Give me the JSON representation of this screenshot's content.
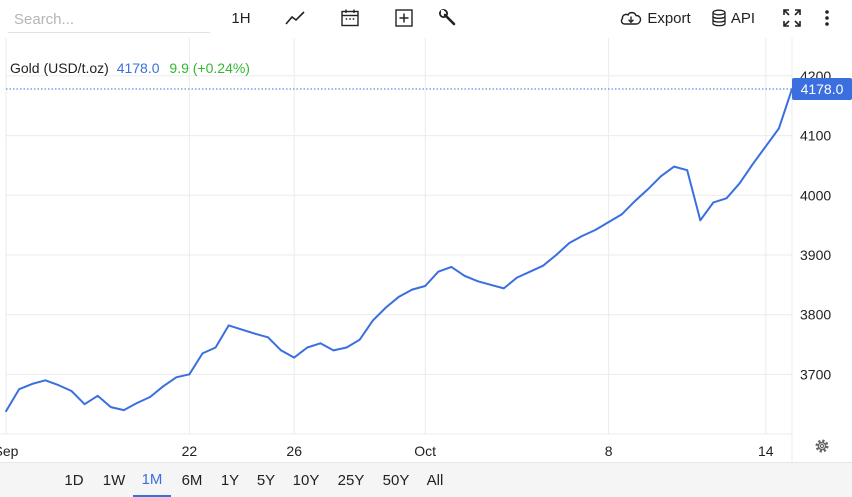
{
  "toolbar": {
    "search_placeholder": "Search...",
    "interval_label": "1H",
    "export_label": "Export",
    "api_label": "API",
    "icons": [
      "line-chart-icon",
      "calendar-icon",
      "plus-box-icon",
      "wrench-icon",
      "cloud-download-icon",
      "database-icon",
      "fullscreen-icon",
      "more-vertical-icon"
    ]
  },
  "legend": {
    "name": "Gold (USD/t.oz)",
    "price": "4178.0",
    "change": "9.9 (+0.24%)"
  },
  "last_price_label": "4178.0",
  "ranges": [
    "1D",
    "1W",
    "1M",
    "6M",
    "1Y",
    "5Y",
    "10Y",
    "25Y",
    "50Y",
    "All"
  ],
  "active_range": "1M",
  "colors": {
    "line": "#3b6fe0",
    "positive": "#33b833",
    "grid": "#ebebeb"
  },
  "chart_data": {
    "type": "line",
    "x_tick_labels": [
      "Sep",
      "22",
      "26",
      "Oct",
      "8",
      "14"
    ],
    "x_ticks": [
      "2025-09-15",
      "2025-09-22",
      "2025-09-26",
      "2025-10-01",
      "2025-10-08",
      "2025-10-14"
    ],
    "xlim": [
      "2025-09-15",
      "2025-10-15"
    ],
    "y_ticks": [
      3700,
      3800,
      3900,
      4000,
      4100,
      4200
    ],
    "ylim": [
      3600,
      4230
    ],
    "grid": true,
    "last_value": 4178.0,
    "series": [
      {
        "x": [
          "2025-09-15T00:00",
          "2025-09-15T12:00",
          "2025-09-16T00:00",
          "2025-09-16T12:00",
          "2025-09-17T00:00",
          "2025-09-17T12:00",
          "2025-09-18T00:00",
          "2025-09-18T12:00",
          "2025-09-19T00:00",
          "2025-09-19T12:00",
          "2025-09-20T00:00",
          "2025-09-20T12:00",
          "2025-09-21T00:00",
          "2025-09-21T12:00",
          "2025-09-22T00:00",
          "2025-09-22T12:00",
          "2025-09-23T00:00",
          "2025-09-23T12:00",
          "2025-09-24T00:00",
          "2025-09-24T12:00",
          "2025-09-25T00:00",
          "2025-09-25T12:00",
          "2025-09-26T00:00",
          "2025-09-26T12:00",
          "2025-09-27T00:00",
          "2025-09-27T12:00",
          "2025-09-28T00:00",
          "2025-09-28T12:00",
          "2025-09-29T00:00",
          "2025-09-29T12:00",
          "2025-09-30T00:00",
          "2025-09-30T12:00",
          "2025-10-01T00:00",
          "2025-10-01T12:00",
          "2025-10-02T00:00",
          "2025-10-02T12:00",
          "2025-10-03T00:00",
          "2025-10-03T12:00",
          "2025-10-04T00:00",
          "2025-10-04T12:00",
          "2025-10-05T00:00",
          "2025-10-05T12:00",
          "2025-10-06T00:00",
          "2025-10-06T12:00",
          "2025-10-07T00:00",
          "2025-10-07T12:00",
          "2025-10-08T00:00",
          "2025-10-08T12:00",
          "2025-10-09T00:00",
          "2025-10-09T12:00",
          "2025-10-10T00:00",
          "2025-10-10T12:00",
          "2025-10-11T00:00",
          "2025-10-11T12:00",
          "2025-10-12T00:00",
          "2025-10-12T12:00",
          "2025-10-13T00:00",
          "2025-10-13T12:00",
          "2025-10-14T00:00",
          "2025-10-14T12:00",
          "2025-10-15T00:00"
        ],
        "values": [
          3638,
          3675,
          3684,
          3690,
          3682,
          3672,
          3650,
          3664,
          3645,
          3640,
          3652,
          3662,
          3680,
          3695,
          3700,
          3735,
          3745,
          3782,
          3775,
          3768,
          3762,
          3740,
          3728,
          3745,
          3752,
          3740,
          3745,
          3758,
          3790,
          3812,
          3830,
          3842,
          3848,
          3872,
          3880,
          3865,
          3856,
          3850,
          3844,
          3862,
          3872,
          3882,
          3900,
          3920,
          3932,
          3942,
          3955,
          3968,
          3990,
          4010,
          4032,
          4048,
          4042,
          3958,
          3988,
          3995,
          4020,
          4052,
          4082,
          4112,
          4178
        ]
      }
    ]
  }
}
